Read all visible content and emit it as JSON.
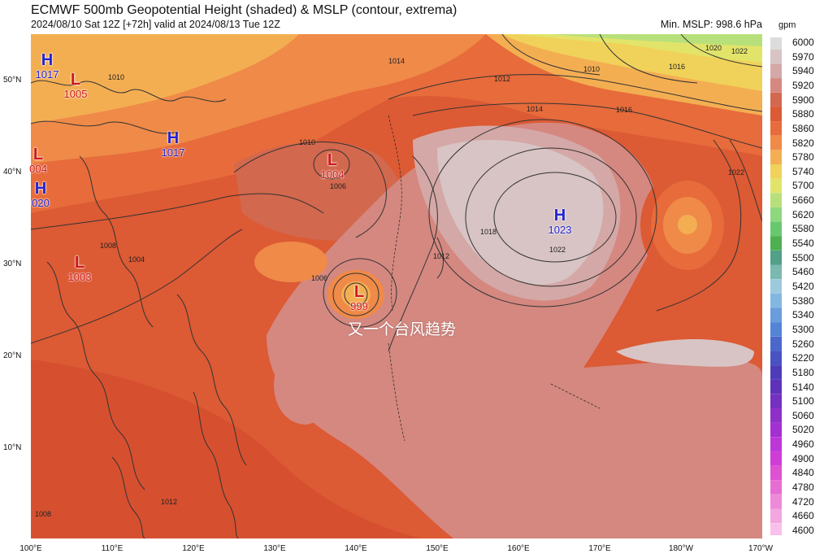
{
  "header": {
    "title": "ECMWF 500mb Geopotential Height (shaded) & MSLP (contour, extrema)",
    "subtitle": "2024/08/10 Sat 12Z [+72h] valid at 2024/08/13 Tue 12Z",
    "min_mslp": "Min. MSLP: 998.6 hPa"
  },
  "axes": {
    "lat_labels": [
      "50°N",
      "40°N",
      "30°N",
      "20°N",
      "10°N"
    ],
    "lon_labels": [
      "100°E",
      "110°E",
      "120°E",
      "130°E",
      "140°E",
      "150°E",
      "160°E",
      "170°E",
      "180°W",
      "170°W"
    ]
  },
  "colorbar": {
    "unit": "gpm",
    "levels": [
      "6000",
      "5970",
      "5940",
      "5920",
      "5900",
      "5880",
      "5860",
      "5820",
      "5780",
      "5740",
      "5700",
      "5660",
      "5620",
      "5580",
      "5540",
      "5500",
      "5460",
      "5420",
      "5380",
      "5340",
      "5300",
      "5260",
      "5220",
      "5180",
      "5140",
      "5100",
      "5060",
      "5020",
      "4960",
      "4900",
      "4840",
      "4780",
      "4720",
      "4660",
      "4600"
    ],
    "colors": [
      "#dcdcdc",
      "#d8c4c4",
      "#d4a8a6",
      "#d48880",
      "#d2684e",
      "#dc5a34",
      "#e76b3b",
      "#ef8a48",
      "#f4ae52",
      "#f0d25a",
      "#e2e46a",
      "#b8e07a",
      "#8ed87e",
      "#68c870",
      "#4eb050",
      "#52a088",
      "#7ab8b0",
      "#9ccadc",
      "#84b6e2",
      "#6a9cde",
      "#5484d6",
      "#4a68cc",
      "#4852c2",
      "#4c3cb8",
      "#5e32b8",
      "#7430c0",
      "#8e30c8",
      "#a430d2",
      "#bc36d8",
      "#d03cd6",
      "#dc52d2",
      "#e66ed2",
      "#ee8ad8",
      "#f4a6e0",
      "#f8c0ea"
    ]
  },
  "pressure_centers": [
    {
      "type": "H",
      "value": "1017"
    },
    {
      "type": "L",
      "value": "1005"
    },
    {
      "type": "H",
      "value": "1017"
    },
    {
      "type": "L",
      "value": "004"
    },
    {
      "type": "H",
      "value": "020"
    },
    {
      "type": "L",
      "value": "1004"
    },
    {
      "type": "L",
      "value": "1003"
    },
    {
      "type": "L",
      "value": "999"
    },
    {
      "type": "H",
      "value": "1023"
    }
  ],
  "isobar_labels": [
    "1010",
    "1014",
    "1012",
    "1010",
    "1016",
    "1020",
    "1022",
    "1014",
    "1016",
    "1018",
    "1022",
    "1022",
    "1012",
    "1006",
    "1006",
    "1008",
    "1004",
    "1012",
    "1008",
    "1010"
  ],
  "annotation": "又一个台风趋势",
  "colors": {
    "high": "#2424d0",
    "low": "#d01818",
    "map_base": "#dc5a34"
  }
}
